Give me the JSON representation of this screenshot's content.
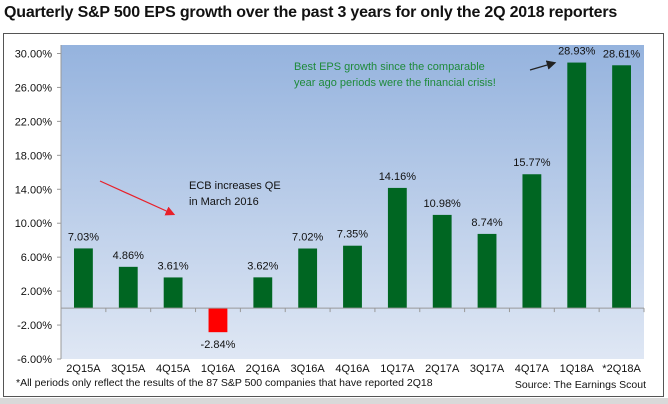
{
  "chart_data": {
    "type": "bar",
    "title": "Quarterly S&P 500 EPS growth over the past 3 years for only the 2Q 2018 reporters",
    "xlabel": "",
    "ylabel": "",
    "categories": [
      "2Q15A",
      "3Q15A",
      "4Q15A",
      "1Q16A",
      "2Q16A",
      "3Q16A",
      "4Q16A",
      "1Q17A",
      "2Q17A",
      "3Q17A",
      "4Q17A",
      "1Q18A",
      "*2Q18A"
    ],
    "values": [
      7.03,
      4.86,
      3.61,
      -2.84,
      3.62,
      7.02,
      7.35,
      14.16,
      10.98,
      8.74,
      15.77,
      28.93,
      28.61
    ],
    "data_labels": [
      "7.03%",
      "4.86%",
      "3.61%",
      "-2.84%",
      "3.62%",
      "7.02%",
      "7.35%",
      "14.16%",
      "10.98%",
      "8.74%",
      "15.77%",
      "28.93%",
      "28.61%"
    ],
    "ylim": [
      -6,
      31
    ],
    "yticks": [
      -6,
      -2,
      2,
      6,
      10,
      14,
      18,
      22,
      26,
      30
    ],
    "ytick_labels": [
      "-6.00%",
      "-2.00%",
      "2.00%",
      "6.00%",
      "10.00%",
      "14.00%",
      "18.00%",
      "22.00%",
      "26.00%",
      "30.00%"
    ],
    "grid": false,
    "legend": null,
    "colors": {
      "positive": "#006622",
      "negative": "#ff0000",
      "plot_bg_top": "#95b3de",
      "plot_bg_bottom": "#dfe7f4"
    },
    "annotations": [
      {
        "text_lines": [
          "ECB increases QE",
          "in March 2016"
        ],
        "color": "#111111",
        "arrow_color": "#e8202a",
        "points_to": "1Q16A"
      },
      {
        "text_lines": [
          "Best EPS growth since the comparable",
          "year ago periods were the financial crisis!"
        ],
        "color": "#1e8a3a",
        "arrow_color": "#222222",
        "points_to": "1Q18A"
      }
    ]
  },
  "footer": {
    "note": "*All periods only reflect the results of the 87 S&P 500 companies that have reported 2Q18",
    "source": "Source: The Earnings Scout"
  }
}
